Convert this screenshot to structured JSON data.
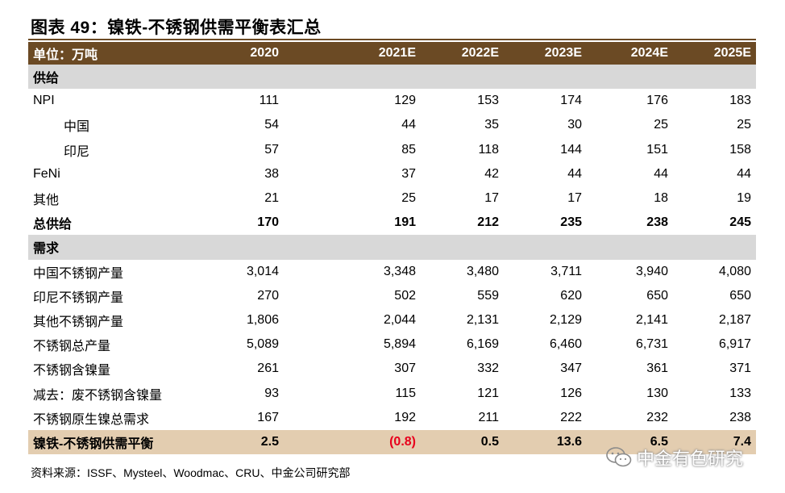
{
  "title": "图表 49：镍铁-不锈钢供需平衡表汇总",
  "header": {
    "unit_label": "单位：万吨",
    "years": [
      "2020",
      "2021E",
      "2022E",
      "2023E",
      "2024E",
      "2025E"
    ]
  },
  "rows": [
    {
      "type": "section",
      "label": "供给",
      "values": []
    },
    {
      "type": "data",
      "label": "NPI",
      "values": [
        "111",
        "129",
        "153",
        "174",
        "176",
        "183"
      ]
    },
    {
      "type": "indent",
      "label": "中国",
      "values": [
        "54",
        "44",
        "35",
        "30",
        "25",
        "25"
      ]
    },
    {
      "type": "indent",
      "label": "印尼",
      "values": [
        "57",
        "85",
        "118",
        "144",
        "151",
        "158"
      ]
    },
    {
      "type": "data",
      "label": "FeNi",
      "values": [
        "38",
        "37",
        "42",
        "44",
        "44",
        "44"
      ]
    },
    {
      "type": "data",
      "label": "其他",
      "values": [
        "21",
        "25",
        "17",
        "17",
        "18",
        "19"
      ]
    },
    {
      "type": "bold",
      "label": "总供给",
      "values": [
        "170",
        "191",
        "212",
        "235",
        "238",
        "245"
      ]
    },
    {
      "type": "section",
      "label": "需求",
      "values": []
    },
    {
      "type": "data",
      "label": "中国不锈钢产量",
      "values": [
        "3,014",
        "3,348",
        "3,480",
        "3,711",
        "3,940",
        "4,080"
      ]
    },
    {
      "type": "data",
      "label": "印尼不锈钢产量",
      "values": [
        "270",
        "502",
        "559",
        "620",
        "650",
        "650"
      ]
    },
    {
      "type": "data",
      "label": "其他不锈钢产量",
      "values": [
        "1,806",
        "2,044",
        "2,131",
        "2,129",
        "2,141",
        "2,187"
      ]
    },
    {
      "type": "data",
      "label": "不锈钢总产量",
      "values": [
        "5,089",
        "5,894",
        "6,169",
        "6,460",
        "6,731",
        "6,917"
      ]
    },
    {
      "type": "data",
      "label": "不锈钢含镍量",
      "values": [
        "261",
        "307",
        "332",
        "347",
        "361",
        "371"
      ]
    },
    {
      "type": "data",
      "label": "减去：废不锈钢含镍量",
      "values": [
        "93",
        "115",
        "121",
        "126",
        "130",
        "133"
      ]
    },
    {
      "type": "data",
      "label": "不锈钢原生镍总需求",
      "values": [
        "167",
        "192",
        "211",
        "222",
        "232",
        "238"
      ]
    },
    {
      "type": "balance",
      "label": "镍铁-不锈钢供需平衡",
      "values": [
        "2.5",
        "(0.8)",
        "0.5",
        "13.6",
        "6.5",
        "7.4"
      ]
    }
  ],
  "negative_color": "#e8001c",
  "header_color": "#6b4a24",
  "balance_color": "#e3cdb0",
  "source": "资料来源：ISSF、Mysteel、Woodmac、CRU、中金公司研究部",
  "watermark": {
    "icon": "wechat-icon",
    "text": "中金有色研究"
  }
}
